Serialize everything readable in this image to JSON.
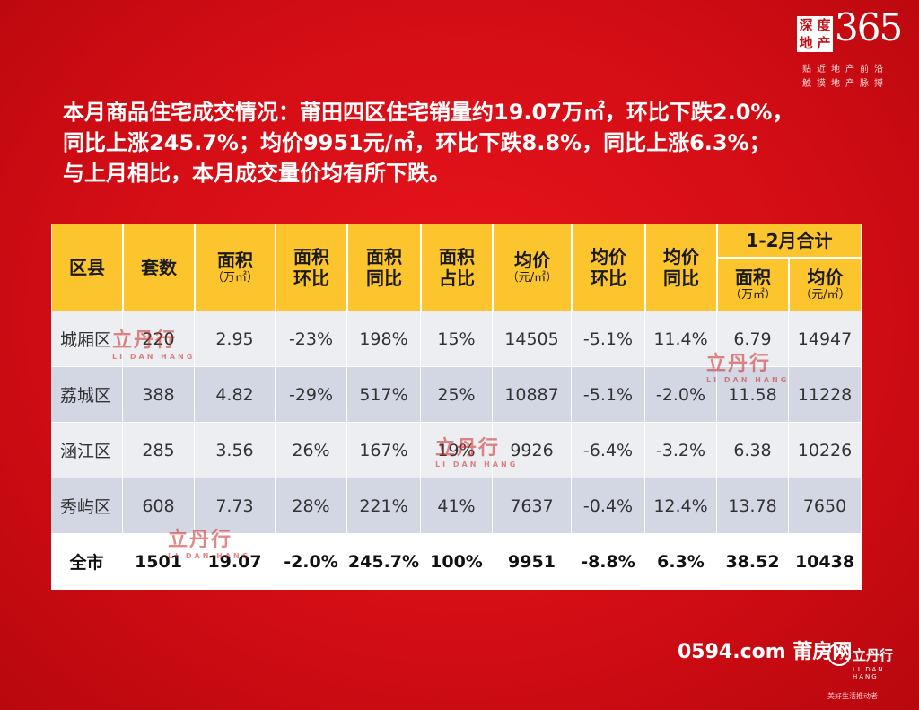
{
  "logo": {
    "chars": [
      "深",
      "度",
      "地",
      "产"
    ],
    "number": "365",
    "tagline1": "贴近地产前沿",
    "tagline2": "触摸地产脉搏"
  },
  "headline": {
    "line1": "本月商品住宅成交情况：莆田四区住宅销量约19.07万㎡，环比下跌2.0%，",
    "line2": "同比上涨245.7%；均价9951元/㎡，环比下跌8.8%，同比上涨6.3%；",
    "line3": "与上月相比，本月成交量价均有所下跌。"
  },
  "table": {
    "headers": {
      "district": "区县",
      "units": "套数",
      "area": "面积",
      "area_unit": "（万㎡）",
      "area_mom": "面积环比",
      "area_yoy": "面积同比",
      "area_share": "面积占比",
      "price": "均价",
      "price_unit": "（元/㎡）",
      "price_mom": "均价环比",
      "price_yoy": "均价同比",
      "ytd_group": "1-2月合计",
      "ytd_area": "面积",
      "ytd_area_unit": "（万㎡）",
      "ytd_price": "均价",
      "ytd_price_unit": "（元/㎡）"
    },
    "rows": [
      {
        "district": "城厢区",
        "units": "220",
        "area": "2.95",
        "area_mom": "-23%",
        "area_yoy": "198%",
        "area_share": "15%",
        "price": "14505",
        "price_mom": "-5.1%",
        "price_yoy": "11.4%",
        "ytd_area": "6.79",
        "ytd_price": "14947"
      },
      {
        "district": "荔城区",
        "units": "388",
        "area": "4.82",
        "area_mom": "-29%",
        "area_yoy": "517%",
        "area_share": "25%",
        "price": "10887",
        "price_mom": "-5.1%",
        "price_yoy": "-2.0%",
        "ytd_area": "11.58",
        "ytd_price": "11228"
      },
      {
        "district": "涵江区",
        "units": "285",
        "area": "3.56",
        "area_mom": "26%",
        "area_yoy": "167%",
        "area_share": "19%",
        "price": "9926",
        "price_mom": "-6.4%",
        "price_yoy": "-3.2%",
        "ytd_area": "6.38",
        "ytd_price": "10226"
      },
      {
        "district": "秀屿区",
        "units": "608",
        "area": "7.73",
        "area_mom": "28%",
        "area_yoy": "221%",
        "area_share": "41%",
        "price": "7637",
        "price_mom": "-0.4%",
        "price_yoy": "12.4%",
        "ytd_area": "13.78",
        "ytd_price": "7650"
      }
    ],
    "total": {
      "district": "全市",
      "units": "1501",
      "area": "19.07",
      "area_mom": "-2.0%",
      "area_yoy": "245.7%",
      "area_share": "100%",
      "price": "9951",
      "price_mom": "-8.8%",
      "price_yoy": "6.3%",
      "ytd_area": "38.52",
      "ytd_price": "10438"
    }
  },
  "watermark": {
    "text": "立丹行",
    "sub": "LI DAN HANG"
  },
  "footer": {
    "site": "0594.com 莆房网",
    "brand": "立丹行",
    "brand_en": "LI DAN HANG",
    "slogan": "美好生活推动者"
  },
  "colors": {
    "background": "#d40d15",
    "header_fill": "#fcc52e",
    "row_light": "#edeef2",
    "row_dark": "#d3d7e3"
  }
}
